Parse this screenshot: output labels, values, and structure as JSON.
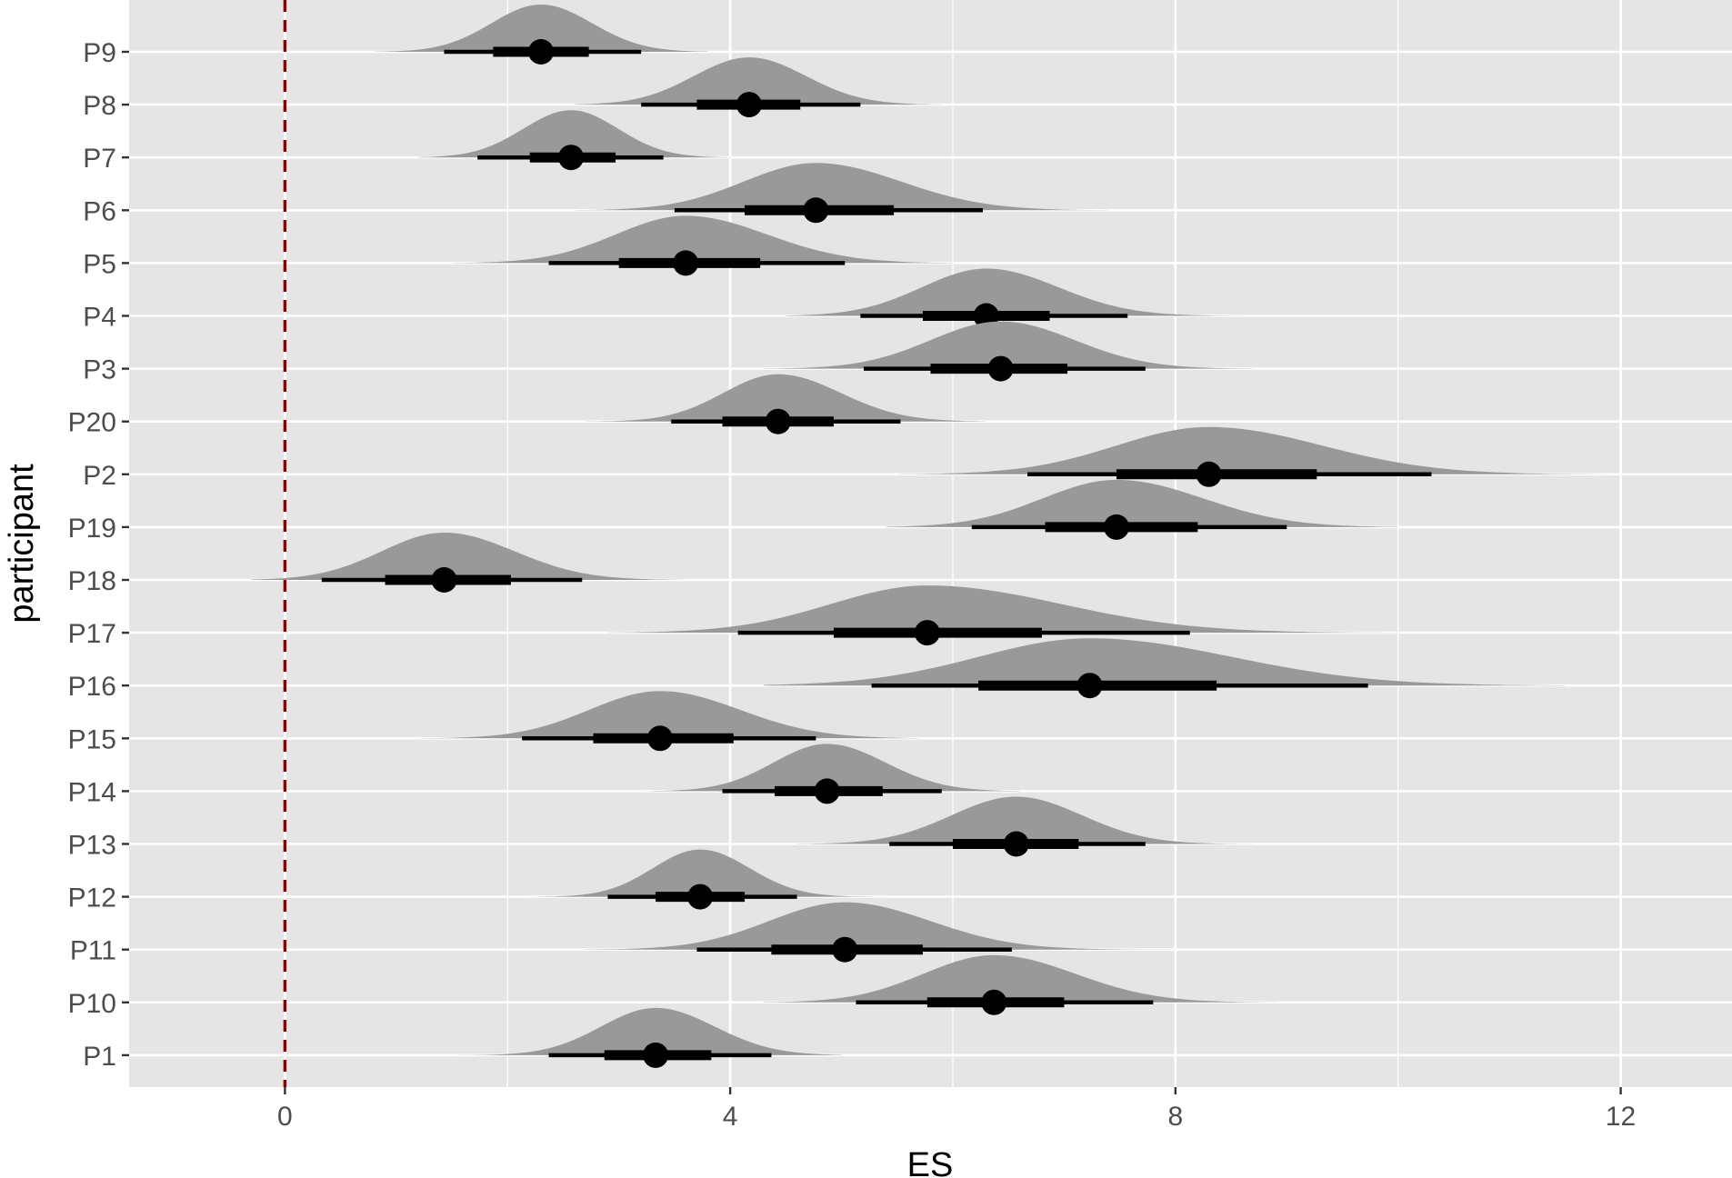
{
  "chart_data": {
    "type": "halfeye",
    "xlabel": "ES",
    "ylabel": "participant",
    "xlim": [
      -1.4,
      13.0
    ],
    "x_ticks": [
      0,
      4,
      8,
      12
    ],
    "x_tick_labels": [
      "0",
      "4",
      "8",
      "12"
    ],
    "reference_line": {
      "x": 0,
      "color": "#8b0000",
      "style": "dashed"
    },
    "colors": {
      "panel": "#e5e5e5",
      "grid": "#ffffff",
      "density": "#999999",
      "interval": "#000000"
    },
    "categories": [
      "P9",
      "P8",
      "P7",
      "P6",
      "P5",
      "P4",
      "P3",
      "P20",
      "P2",
      "P19",
      "P18",
      "P17",
      "P16",
      "P15",
      "P14",
      "P13",
      "P12",
      "P11",
      "P10",
      "P1"
    ],
    "points": [
      {
        "participant": "P9",
        "median": 2.3,
        "q66": [
          1.87,
          2.73
        ],
        "q95": [
          1.43,
          3.2
        ],
        "range": [
          0.8,
          3.8
        ]
      },
      {
        "participant": "P8",
        "median": 4.17,
        "q66": [
          3.7,
          4.63
        ],
        "q95": [
          3.2,
          5.17
        ],
        "range": [
          2.6,
          5.9
        ]
      },
      {
        "participant": "P7",
        "median": 2.57,
        "q66": [
          2.2,
          2.97
        ],
        "q95": [
          1.73,
          3.4
        ],
        "range": [
          1.2,
          4.0
        ]
      },
      {
        "participant": "P6",
        "median": 4.77,
        "q66": [
          4.13,
          5.47
        ],
        "q95": [
          3.5,
          6.27
        ],
        "range": [
          2.6,
          7.4
        ]
      },
      {
        "participant": "P5",
        "median": 3.6,
        "q66": [
          3.0,
          4.27
        ],
        "q95": [
          2.37,
          5.03
        ],
        "range": [
          1.5,
          6.0
        ]
      },
      {
        "participant": "P4",
        "median": 6.3,
        "q66": [
          5.73,
          6.87
        ],
        "q95": [
          5.17,
          7.57
        ],
        "range": [
          4.5,
          8.6
        ]
      },
      {
        "participant": "P3",
        "median": 6.43,
        "q66": [
          5.8,
          7.03
        ],
        "q95": [
          5.2,
          7.73
        ],
        "range": [
          4.3,
          8.7
        ]
      },
      {
        "participant": "P20",
        "median": 4.43,
        "q66": [
          3.93,
          4.93
        ],
        "q95": [
          3.47,
          5.53
        ],
        "range": [
          2.7,
          6.3
        ]
      },
      {
        "participant": "P2",
        "median": 8.3,
        "q66": [
          7.47,
          9.27
        ],
        "q95": [
          6.67,
          10.3
        ],
        "range": [
          5.5,
          12.0
        ]
      },
      {
        "participant": "P19",
        "median": 7.47,
        "q66": [
          6.83,
          8.2
        ],
        "q95": [
          6.17,
          9.0
        ],
        "range": [
          5.4,
          10.0
        ]
      },
      {
        "participant": "P18",
        "median": 1.43,
        "q66": [
          0.9,
          2.03
        ],
        "q95": [
          0.33,
          2.67
        ],
        "range": [
          -0.3,
          3.6
        ]
      },
      {
        "participant": "P17",
        "median": 5.77,
        "q66": [
          4.93,
          6.8
        ],
        "q95": [
          4.07,
          8.13
        ],
        "range": [
          2.9,
          10.0
        ]
      },
      {
        "participant": "P16",
        "median": 7.23,
        "q66": [
          6.23,
          8.37
        ],
        "q95": [
          5.27,
          9.73
        ],
        "range": [
          4.3,
          11.5
        ]
      },
      {
        "participant": "P15",
        "median": 3.37,
        "q66": [
          2.77,
          4.03
        ],
        "q95": [
          2.13,
          4.77
        ],
        "range": [
          1.1,
          5.7
        ]
      },
      {
        "participant": "P14",
        "median": 4.87,
        "q66": [
          4.4,
          5.37
        ],
        "q95": [
          3.93,
          5.9
        ],
        "range": [
          3.2,
          6.6
        ]
      },
      {
        "participant": "P13",
        "median": 6.57,
        "q66": [
          6.0,
          7.13
        ],
        "q95": [
          5.43,
          7.73
        ],
        "range": [
          4.6,
          8.7
        ]
      },
      {
        "participant": "P12",
        "median": 3.73,
        "q66": [
          3.33,
          4.13
        ],
        "q95": [
          2.9,
          4.6
        ],
        "range": [
          2.2,
          5.4
        ]
      },
      {
        "participant": "P11",
        "median": 5.03,
        "q66": [
          4.37,
          5.73
        ],
        "q95": [
          3.7,
          6.53
        ],
        "range": [
          2.7,
          8.0
        ]
      },
      {
        "participant": "P10",
        "median": 6.37,
        "q66": [
          5.77,
          7.0
        ],
        "q95": [
          5.13,
          7.8
        ],
        "range": [
          4.3,
          8.9
        ]
      },
      {
        "participant": "P1",
        "median": 3.33,
        "q66": [
          2.87,
          3.83
        ],
        "q95": [
          2.37,
          4.37
        ],
        "range": [
          1.5,
          5.0
        ]
      }
    ]
  }
}
